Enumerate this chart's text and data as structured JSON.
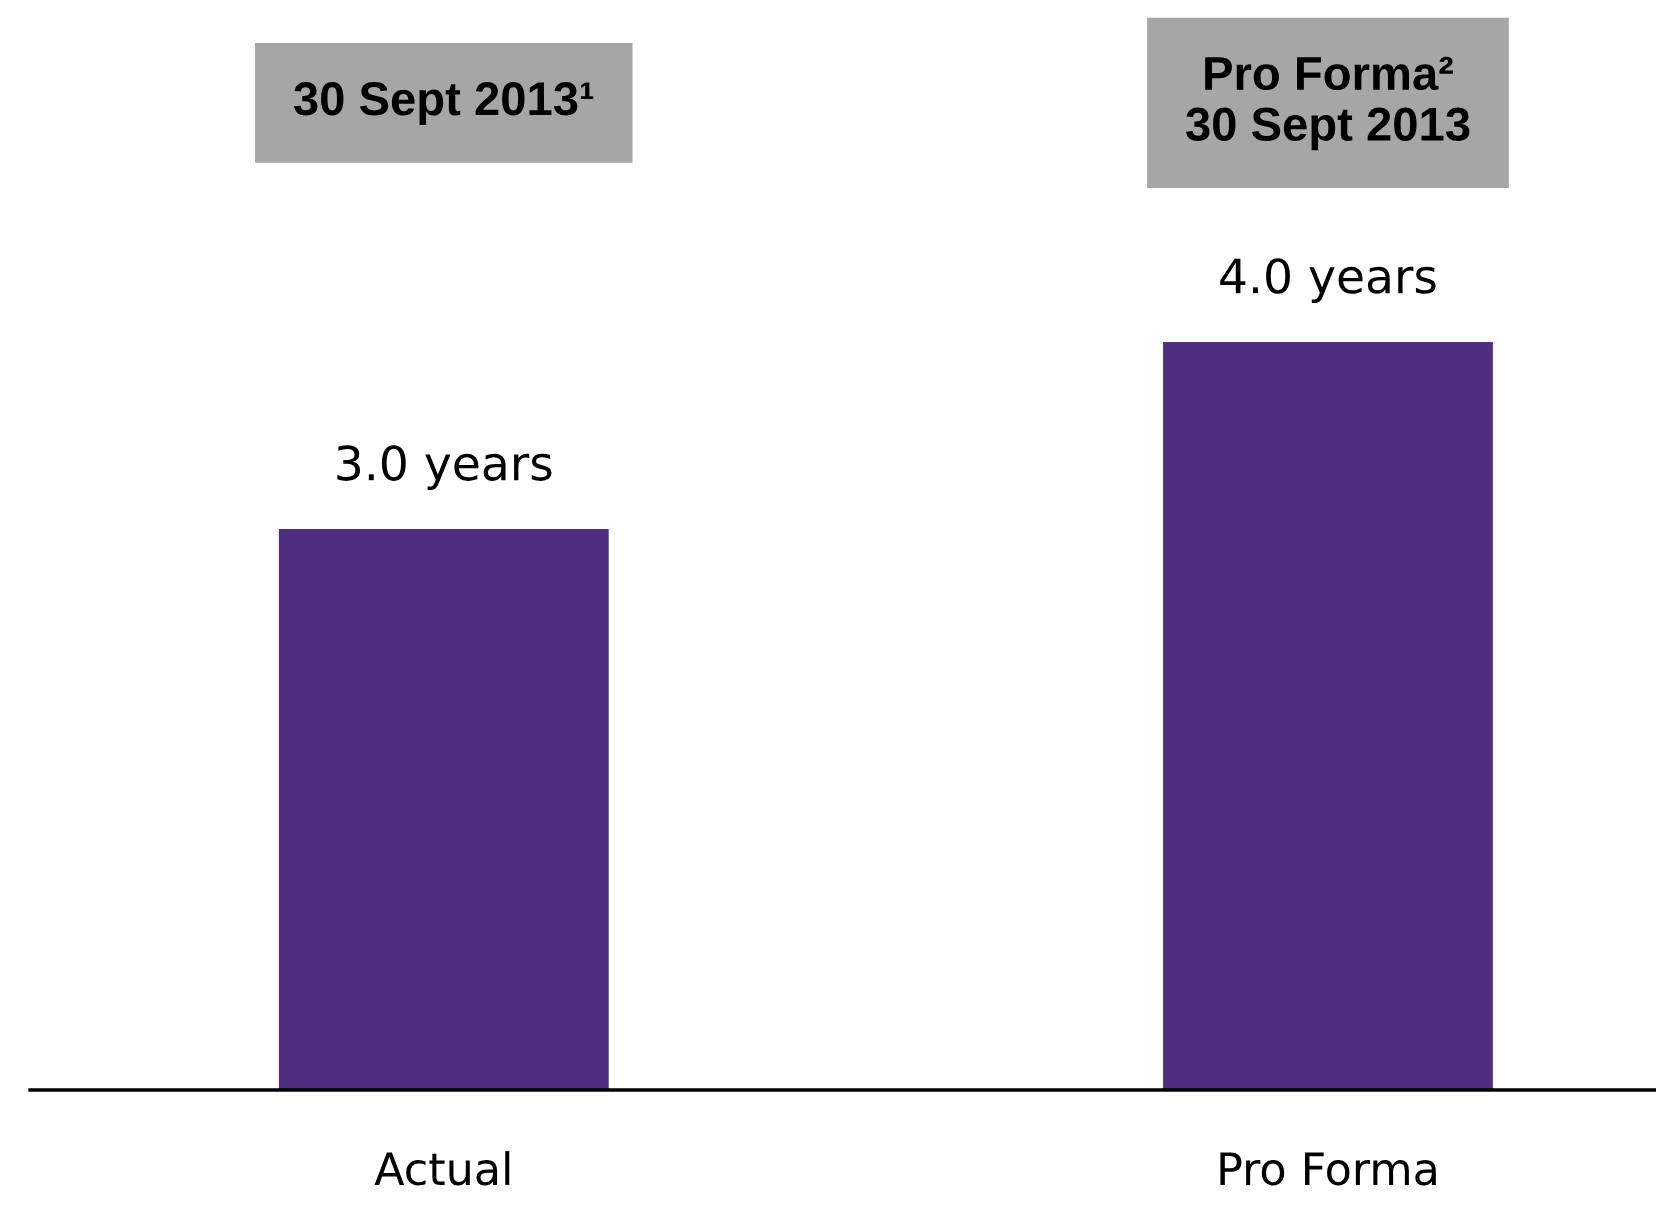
{
  "chart_data": {
    "type": "bar",
    "categories": [
      "Actual",
      "Pro Forma"
    ],
    "values": [
      3.0,
      4.0
    ],
    "color": "#4f2d7f",
    "value_labels": [
      "3.0 years",
      "4.0 years"
    ],
    "annotations": [
      "30 Sept 2013¹",
      "Pro Forma²\n30 Sept 2013"
    ],
    "tick_labels": "x",
    "grid": false,
    "legend": false
  }
}
